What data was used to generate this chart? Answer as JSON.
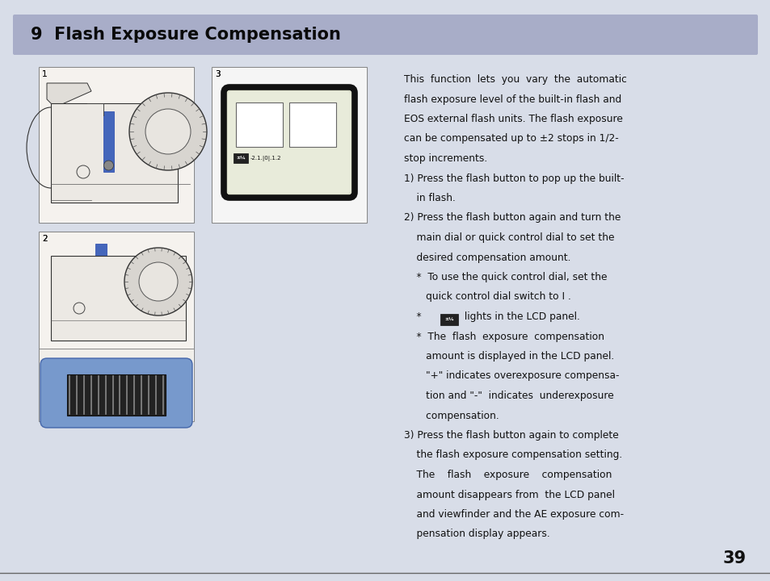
{
  "title": "9  Flash Exposure Compensation",
  "title_bg_color": "#a8adc8",
  "page_bg_color": "#d8dde8",
  "page_number": "39",
  "body_text_color": "#111111",
  "title_text_color": "#0a0a0a",
  "figsize": [
    9.54,
    7.2
  ],
  "dpi": 100,
  "text_lines": [
    "This  function  lets  you  vary  the  automatic",
    "flash exposure level of the built-in flash and",
    "EOS external flash units. The flash exposure",
    "can be compensated up to ±2 stops in 1/2-",
    "stop increments.",
    "1) Press the flash button to pop up the built-",
    "    in flash.",
    "2) Press the flash button again and turn the",
    "    main dial or quick control dial to set the",
    "    desired compensation amount.",
    "    *  To use the quick control dial, set the",
    "       quick control dial switch to I .",
    "    *       lights in the LCD panel.",
    "    *  The  flash  exposure  compensation",
    "       amount is displayed in the LCD panel.",
    "       \"+\" indicates overexposure compensa-",
    "       tion and \"-\"  indicates  underexposure",
    "       compensation.",
    "3) Press the flash button again to complete",
    "    the flash exposure compensation setting.",
    "    The    flash    exposure    compensation",
    "    amount disappears from  the LCD panel",
    "    and viewfinder and the AE exposure com-",
    "    pensation display appears."
  ]
}
